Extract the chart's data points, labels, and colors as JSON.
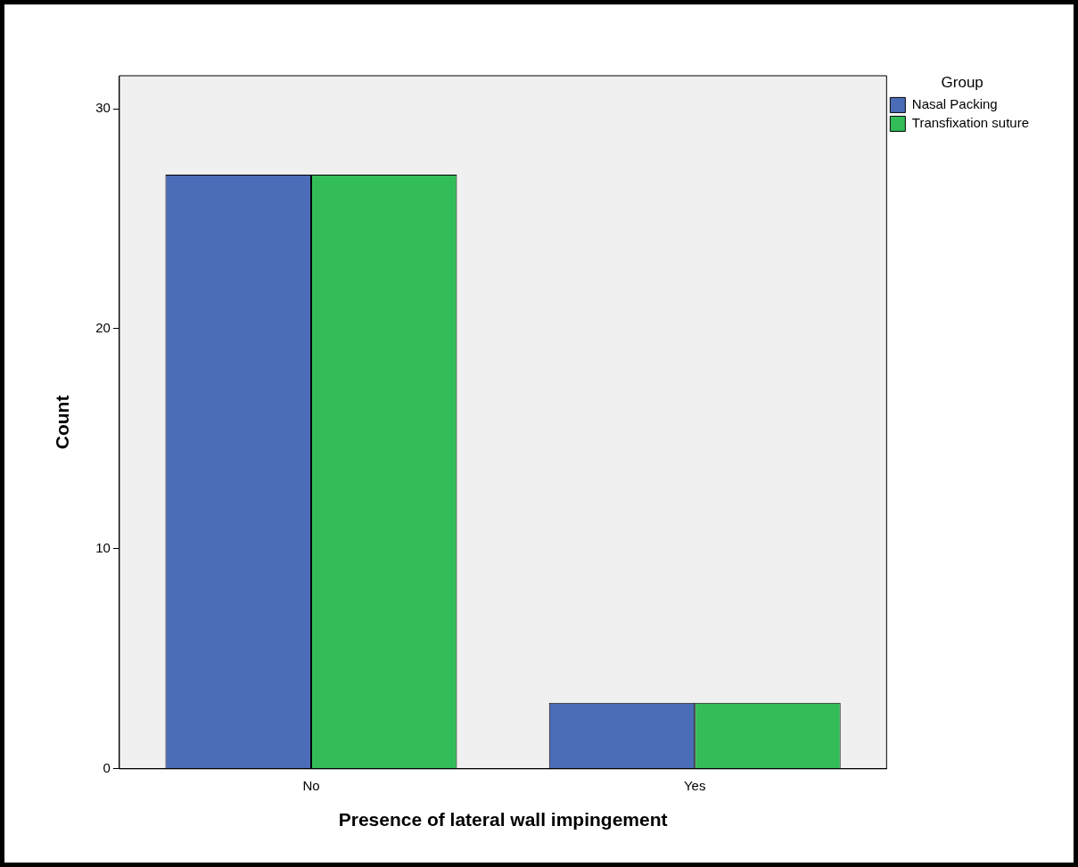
{
  "chart_data": {
    "type": "bar",
    "xlabel": "Presence of lateral wall impingement",
    "ylabel": "Count",
    "legend_title": "Group",
    "categories": [
      "No",
      "Yes"
    ],
    "series": [
      {
        "name": "Nasal Packing",
        "color": "#4b6cb7",
        "values": [
          27,
          3
        ]
      },
      {
        "name": "Transfixation suture",
        "color": "#33bd58",
        "values": [
          27,
          3
        ]
      }
    ],
    "ylim": [
      0,
      31.5
    ],
    "yticks": [
      0,
      10,
      20,
      30
    ],
    "grid": false,
    "legend": "top right"
  }
}
